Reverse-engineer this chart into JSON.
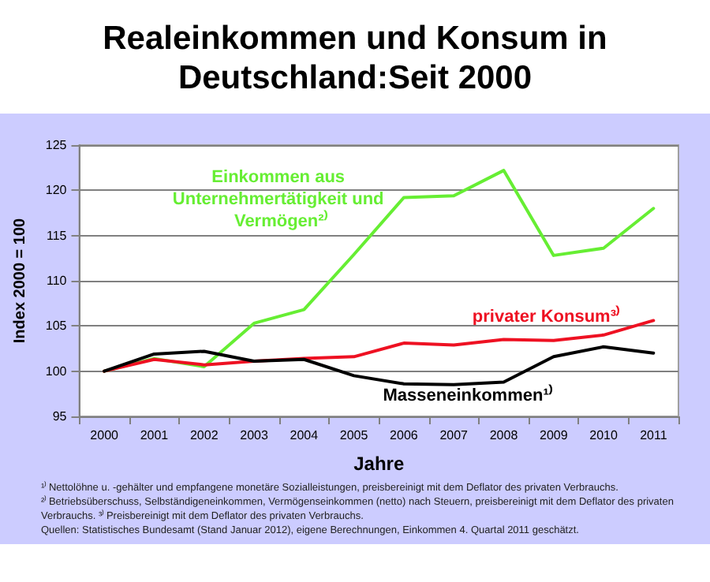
{
  "chart_data": {
    "type": "line",
    "title": "Realeinkommen und Konsum in Deutschland:Seit 2000",
    "xlabel": "Jahre",
    "ylabel": "Index 2000 = 100",
    "categories": [
      "2000",
      "2001",
      "2002",
      "2003",
      "2004",
      "2005",
      "2006",
      "2007",
      "2008",
      "2009",
      "2010",
      "2011"
    ],
    "series": [
      {
        "name": "Einkommen aus Unternehmertätigkeit und Vermögen²⁾",
        "color": "#66ee33",
        "values": [
          100,
          101.4,
          100.5,
          105.3,
          106.8,
          112.9,
          119.2,
          119.4,
          122.2,
          112.8,
          113.6,
          118.0
        ]
      },
      {
        "name": "privater Konsum³⁾",
        "color": "#ee1122",
        "values": [
          100,
          101.3,
          100.7,
          101.1,
          101.4,
          101.6,
          103.1,
          102.9,
          103.5,
          103.4,
          104.0,
          105.6
        ]
      },
      {
        "name": "Masseneinkommen¹⁾",
        "color": "#000000",
        "values": [
          100,
          101.9,
          102.2,
          101.1,
          101.3,
          99.5,
          98.6,
          98.5,
          98.8,
          101.6,
          102.7,
          102.0
        ]
      }
    ],
    "ylim": [
      95,
      125
    ],
    "yticks": [
      95,
      100,
      105,
      110,
      115,
      120,
      125
    ],
    "grid": "y",
    "legend": false,
    "marker": "none",
    "line_style": "solid",
    "annotations": [
      "¹⁾ Nettolöhne u. -gehälter und empfangene monetäre Sozialleistungen, preisbereinigt mit dem Deflator des privaten Verbrauchs.",
      "²⁾ Betriebsüberschuss, Selbständigeneinkommen, Vermögenseinkommen (netto) nach Steuern, preisbereinigt mit dem Deflator des privaten Verbrauchs. ³⁾ Preisbereinigt mit dem Deflator des privaten Verbrauchs.",
      "Quellen: Statistisches Bundesamt (Stand Januar 2012), eigene Berechnungen, Einkommen 4. Quartal 2011 geschätzt."
    ]
  }
}
